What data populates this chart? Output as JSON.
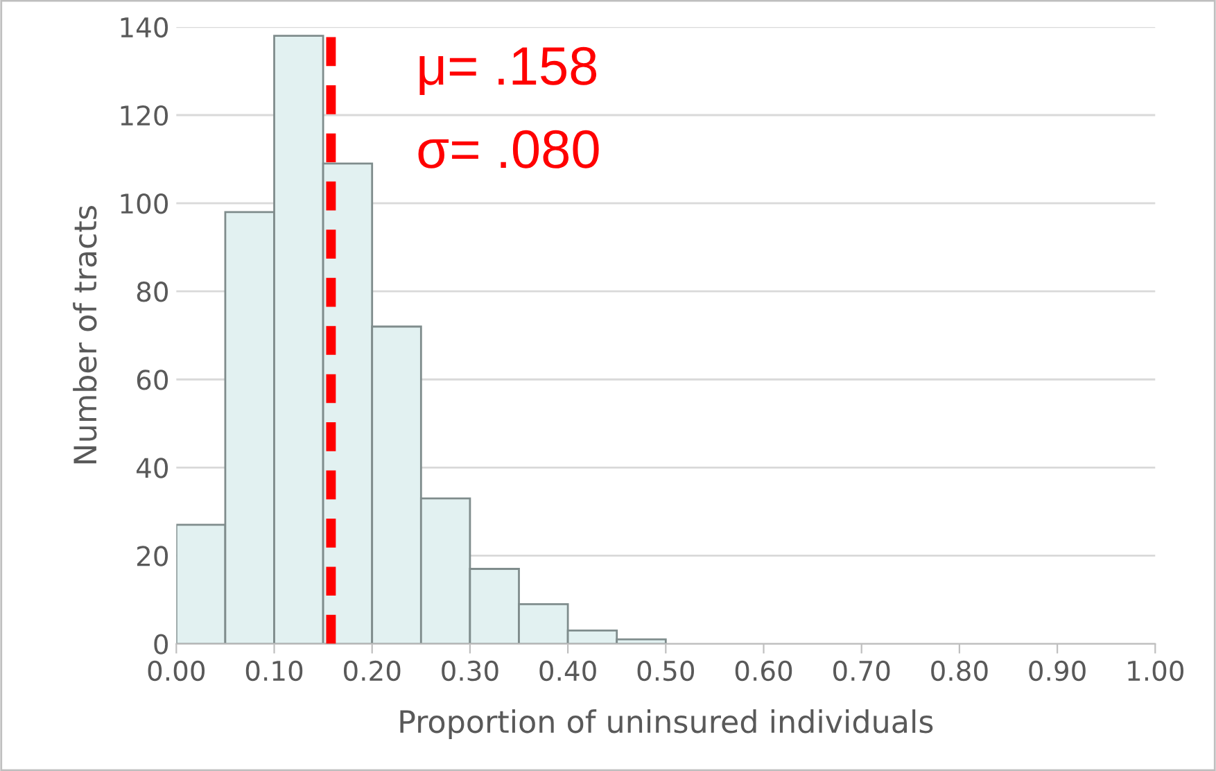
{
  "chart_data": {
    "type": "histogram",
    "xlabel": "Proportion of uninsured individuals",
    "ylabel": "Number of tracts",
    "bins": [
      0,
      0.05,
      0.1,
      0.15,
      0.2,
      0.25,
      0.3,
      0.35,
      0.4,
      0.45,
      0.5
    ],
    "values": [
      27,
      98,
      138,
      109,
      72,
      33,
      17,
      9,
      3,
      1
    ],
    "color": "#e2f1f1",
    "xlim": [
      0,
      1
    ],
    "xticks": [
      {
        "value": 0,
        "label": "0.00"
      },
      {
        "value": 0.1,
        "label": "0.10"
      },
      {
        "value": 0.2,
        "label": "0.20"
      },
      {
        "value": 0.3,
        "label": "0.30"
      },
      {
        "value": 0.4,
        "label": "0.40"
      },
      {
        "value": 0.5,
        "label": "0.50"
      },
      {
        "value": 0.6,
        "label": "0.60"
      },
      {
        "value": 0.7,
        "label": "0.70"
      },
      {
        "value": 0.8,
        "label": "0.80"
      },
      {
        "value": 0.9,
        "label": "0.90"
      },
      {
        "value": 1,
        "label": "1.00"
      }
    ],
    "ylim": [
      0,
      140
    ],
    "yticks": [
      0,
      20,
      40,
      60,
      80,
      100,
      120,
      140
    ],
    "grid": "y",
    "ref_lines": [
      {
        "axis": "x",
        "value": 0.158,
        "color": "#ff0000",
        "line_style": "dashed"
      }
    ],
    "annotations": [
      "μ= .158",
      "σ= .080"
    ]
  }
}
